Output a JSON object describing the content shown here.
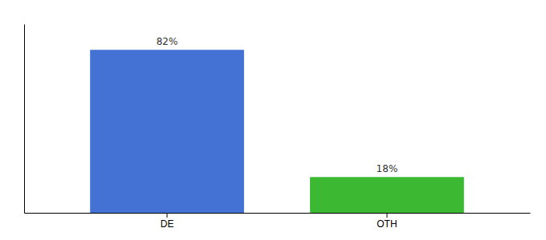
{
  "chart_data": {
    "type": "bar",
    "categories": [
      "DE",
      "OTH"
    ],
    "values": [
      82,
      18
    ],
    "value_labels": [
      "82%",
      "18%"
    ],
    "colors": [
      "#4472d4",
      "#3cb832"
    ],
    "ylim": [
      0,
      95
    ],
    "yticks": [],
    "data_labels": true,
    "tick_labels": "x"
  }
}
